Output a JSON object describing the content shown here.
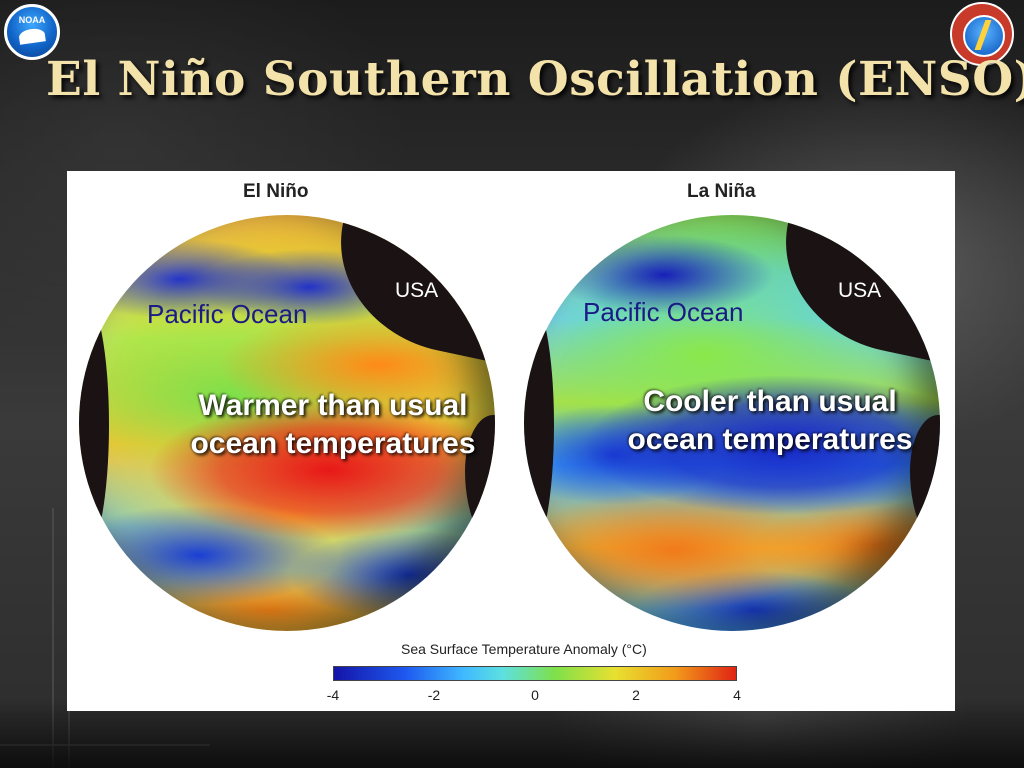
{
  "slide": {
    "title": "El Niño Southern Oscillation (ENSO)"
  },
  "logos": {
    "left": {
      "name": "noaa-logo",
      "text": "NOAA"
    },
    "right": {
      "name": "national-weather-service-logo"
    }
  },
  "figure": {
    "el_nino": {
      "caption": "El Niño",
      "usa_label": "USA",
      "ocean_label": "Pacific Ocean",
      "callout_line1": "Warmer than usual",
      "callout_line2": "ocean temperatures"
    },
    "la_nina": {
      "caption": "La Niña",
      "usa_label": "USA",
      "ocean_label": "Pacific Ocean",
      "callout_line1": "Cooler than usual",
      "callout_line2": "ocean temperatures"
    },
    "colorbar": {
      "title": "Sea Surface Temperature Anomaly (°C)",
      "ticks": [
        "-4",
        "-2",
        "0",
        "2",
        "4"
      ],
      "colors": [
        "#1414a8",
        "#1e5af0",
        "#3fb8ff",
        "#7fe04a",
        "#e8e030",
        "#f29a1a",
        "#e02414"
      ]
    }
  }
}
